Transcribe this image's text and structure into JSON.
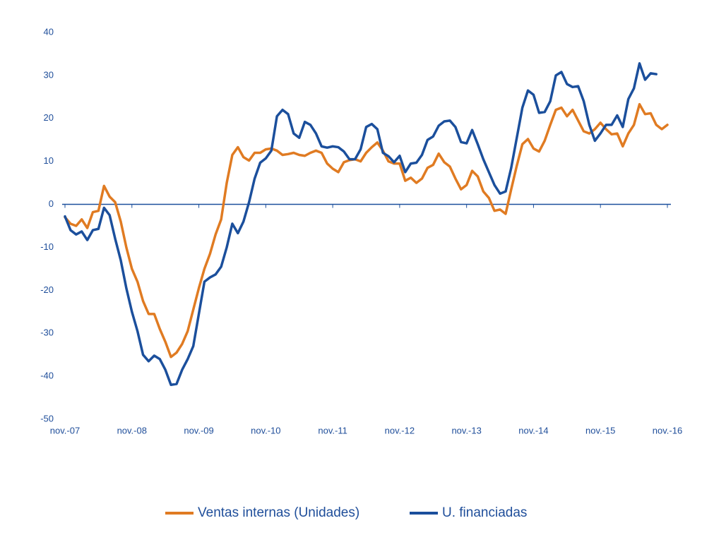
{
  "chart_data": {
    "type": "line",
    "categories": [
      "nov.-07",
      null,
      null,
      null,
      null,
      null,
      null,
      null,
      null,
      null,
      null,
      null,
      "nov.-08",
      null,
      null,
      null,
      null,
      null,
      null,
      null,
      null,
      null,
      null,
      null,
      "nov.-09",
      null,
      null,
      null,
      null,
      null,
      null,
      null,
      null,
      null,
      null,
      null,
      "nov.-10",
      null,
      null,
      null,
      null,
      null,
      null,
      null,
      null,
      null,
      null,
      null,
      "nov.-11",
      null,
      null,
      null,
      null,
      null,
      null,
      null,
      null,
      null,
      null,
      null,
      "nov.-12",
      null,
      null,
      null,
      null,
      null,
      null,
      null,
      null,
      null,
      null,
      null,
      "nov.-13",
      null,
      null,
      null,
      null,
      null,
      null,
      null,
      null,
      null,
      null,
      null,
      "nov.-14",
      null,
      null,
      null,
      null,
      null,
      null,
      null,
      null,
      null,
      null,
      null,
      "nov.-15",
      null,
      null,
      null,
      null,
      null,
      null,
      null,
      null,
      null,
      null,
      null,
      "nov.-16"
    ],
    "series": [
      {
        "name": "Ventas internas (Unidades)",
        "color": "#e07b22",
        "values": [
          -3,
          -4.5,
          -5,
          -3.5,
          -5.5,
          -1.8,
          -1.5,
          4.3,
          1.8,
          0.5,
          -4,
          -10,
          -15,
          -18,
          -22.5,
          -25.5,
          -25.5,
          -29,
          -32,
          -35.5,
          -34.5,
          -32.5,
          -29.5,
          -24.5,
          -19.5,
          -15,
          -11.5,
          -7,
          -3.5,
          5,
          11.5,
          13.3,
          11,
          10.2,
          12,
          12,
          12.8,
          13,
          12.5,
          11.5,
          11.7,
          12,
          11.5,
          11.3,
          12,
          12.5,
          12,
          9.5,
          8.3,
          7.5,
          9.8,
          10.3,
          10.5,
          10,
          12,
          13.3,
          14.4,
          12.5,
          10,
          9.5,
          9.5,
          5.5,
          6.2,
          5,
          6,
          8.5,
          9.2,
          11.8,
          9.8,
          8.8,
          6,
          3.5,
          4.5,
          7.8,
          6.5,
          3,
          1.5,
          -1.5,
          -1.2,
          -2.2,
          3.5,
          9,
          14,
          15.2,
          13,
          12.3,
          14.8,
          18.5,
          22,
          22.5,
          20.5,
          22,
          19.5,
          17,
          16.5,
          17.5,
          19,
          17.5,
          16.3,
          16.5,
          13.5,
          16.5,
          18.5,
          23.3,
          21,
          21.2,
          18.5,
          17.5,
          18.5
        ]
      },
      {
        "name": "U. financiadas",
        "color": "#1b4f9c",
        "values": [
          -2.8,
          -6,
          -7,
          -6.3,
          -8.3,
          -6,
          -5.7,
          -0.8,
          -2.5,
          -8,
          -13,
          -19.5,
          -25,
          -29.5,
          -35,
          -36.5,
          -35.2,
          -36,
          -38.5,
          -42,
          -41.8,
          -38.5,
          -36,
          -33,
          -25.5,
          -18,
          -17,
          -16.3,
          -14.5,
          -10,
          -4.5,
          -6.7,
          -4,
          0.5,
          6,
          9.7,
          10.7,
          12.5,
          20.5,
          22,
          21,
          16.5,
          15.5,
          19.2,
          18.5,
          16.5,
          13.5,
          13.2,
          13.5,
          13.3,
          12.3,
          10.5,
          10.5,
          12.8,
          18,
          18.7,
          17.5,
          12,
          11.2,
          9.8,
          11.3,
          7.5,
          9.5,
          9.7,
          11.5,
          15,
          15.8,
          18.3,
          19.3,
          19.5,
          18,
          14.5,
          14.2,
          17.3,
          14,
          10.5,
          7.5,
          4.5,
          2.5,
          3,
          8.5,
          15.5,
          22.5,
          26.5,
          25.5,
          21.3,
          21.5,
          24,
          30,
          30.8,
          28,
          27.3,
          27.5,
          24,
          18.5,
          14.8,
          16.5,
          18.5,
          18.5,
          20.7,
          18,
          24.5,
          27,
          32.8,
          29,
          30.5,
          30.3,
          null,
          null
        ]
      }
    ],
    "ylim": [
      -50,
      40
    ],
    "yticks": [
      -50,
      -40,
      -30,
      -20,
      -10,
      0,
      10,
      20,
      30,
      40
    ],
    "grid": false,
    "legend": "bottom"
  }
}
